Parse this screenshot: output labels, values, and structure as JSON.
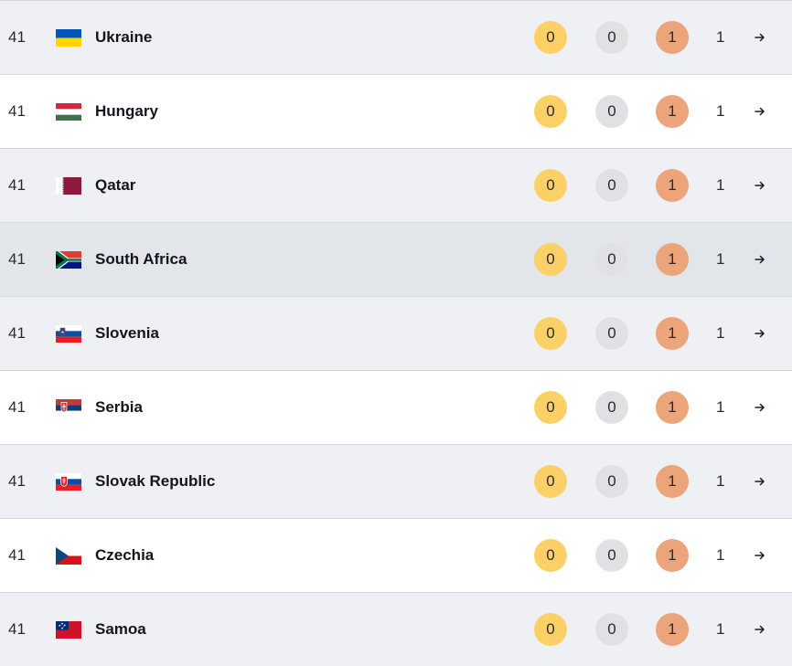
{
  "rows": [
    {
      "rank": "41",
      "country": "Ukraine",
      "gold": "0",
      "silver": "0",
      "bronze": "1",
      "total": "1",
      "flag_icon": "ukraine-flag-icon"
    },
    {
      "rank": "41",
      "country": "Hungary",
      "gold": "0",
      "silver": "0",
      "bronze": "1",
      "total": "1",
      "flag_icon": "hungary-flag-icon"
    },
    {
      "rank": "41",
      "country": "Qatar",
      "gold": "0",
      "silver": "0",
      "bronze": "1",
      "total": "1",
      "flag_icon": "qatar-flag-icon"
    },
    {
      "rank": "41",
      "country": "South Africa",
      "gold": "0",
      "silver": "0",
      "bronze": "1",
      "total": "1",
      "flag_icon": "south-africa-flag-icon"
    },
    {
      "rank": "41",
      "country": "Slovenia",
      "gold": "0",
      "silver": "0",
      "bronze": "1",
      "total": "1",
      "flag_icon": "slovenia-flag-icon"
    },
    {
      "rank": "41",
      "country": "Serbia",
      "gold": "0",
      "silver": "0",
      "bronze": "1",
      "total": "1",
      "flag_icon": "serbia-flag-icon"
    },
    {
      "rank": "41",
      "country": "Slovak Republic",
      "gold": "0",
      "silver": "0",
      "bronze": "1",
      "total": "1",
      "flag_icon": "slovak-republic-flag-icon"
    },
    {
      "rank": "41",
      "country": "Czechia",
      "gold": "0",
      "silver": "0",
      "bronze": "1",
      "total": "1",
      "flag_icon": "czechia-flag-icon"
    },
    {
      "rank": "41",
      "country": "Samoa",
      "gold": "0",
      "silver": "0",
      "bronze": "1",
      "total": "1",
      "flag_icon": "samoa-flag-icon"
    }
  ],
  "colors": {
    "gold": "#fbd167",
    "silver": "#e1e1e3",
    "bronze": "#eca47a",
    "row_alt": "#eef0f3",
    "row_hover": "#e2e5e9"
  },
  "icons": {
    "arrow": "arrow-right-icon"
  }
}
